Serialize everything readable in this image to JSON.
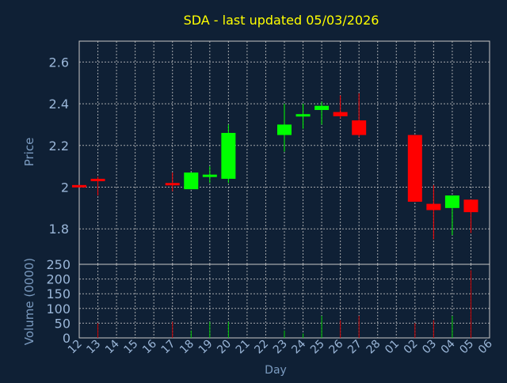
{
  "colors": {
    "background": "#0f2035",
    "plot_border": "#c8c8c8",
    "grid": "#c8c8c8",
    "title": "#ffff00",
    "axis_text": "#9ab6d8",
    "axis_title": "#7b9bc0",
    "up": "#00ff00",
    "down": "#ff0000",
    "volume_up": "#00cc00",
    "volume_down": "#cc0000"
  },
  "chart_data": {
    "type": "candlestick",
    "title": "SDA - last updated 05/03/2026",
    "xlabel": "Day",
    "ylabel_price": "Price",
    "ylabel_volume": "Volume (0000)",
    "price_ylim": [
      1.63,
      2.7
    ],
    "price_ticks": [
      "1.8",
      "2",
      "2.2",
      "2.4",
      "2.6"
    ],
    "volume_ylim": [
      0,
      250
    ],
    "volume_ticks": [
      "0",
      "50",
      "100",
      "150",
      "200",
      "250"
    ],
    "x_ticks": [
      "12",
      "13",
      "14",
      "15",
      "16",
      "17",
      "18",
      "19",
      "20",
      "21",
      "22",
      "23",
      "24",
      "25",
      "26",
      "27",
      "28",
      "01",
      "02",
      "03",
      "04",
      "05",
      "06"
    ],
    "grid": true,
    "candles": [
      {
        "day": "12",
        "open": 2.01,
        "high": 2.01,
        "low": 2.0,
        "close": 2.0,
        "volume": 0
      },
      {
        "day": "13",
        "open": 2.04,
        "high": 2.05,
        "low": 1.96,
        "close": 2.03,
        "volume": 50
      },
      {
        "day": "17",
        "open": 2.02,
        "high": 2.07,
        "low": 1.98,
        "close": 2.01,
        "volume": 55
      },
      {
        "day": "18",
        "open": 1.99,
        "high": 2.07,
        "low": 1.99,
        "close": 2.07,
        "volume": 25
      },
      {
        "day": "19",
        "open": 2.05,
        "high": 2.1,
        "low": 2.02,
        "close": 2.06,
        "volume": 55
      },
      {
        "day": "20",
        "open": 2.04,
        "high": 2.3,
        "low": 2.02,
        "close": 2.26,
        "volume": 55
      },
      {
        "day": "23",
        "open": 2.25,
        "high": 2.4,
        "low": 2.17,
        "close": 2.3,
        "volume": 25
      },
      {
        "day": "24",
        "open": 2.35,
        "high": 2.4,
        "low": 2.28,
        "close": 2.35,
        "volume": 15
      },
      {
        "day": "25",
        "open": 2.37,
        "high": 2.41,
        "low": 2.3,
        "close": 2.39,
        "volume": 75
      },
      {
        "day": "26",
        "open": 2.36,
        "high": 2.44,
        "low": 2.33,
        "close": 2.34,
        "volume": 60
      },
      {
        "day": "27",
        "open": 2.32,
        "high": 2.45,
        "low": 2.24,
        "close": 2.25,
        "volume": 75
      },
      {
        "day": "02",
        "open": 2.25,
        "high": 2.25,
        "low": 1.93,
        "close": 1.93,
        "volume": 50
      },
      {
        "day": "03",
        "open": 1.92,
        "high": 2.01,
        "low": 1.75,
        "close": 1.89,
        "volume": 60
      },
      {
        "day": "04",
        "open": 1.9,
        "high": 1.96,
        "low": 1.77,
        "close": 1.96,
        "volume": 75
      },
      {
        "day": "05",
        "open": 1.94,
        "high": 1.94,
        "low": 1.78,
        "close": 1.88,
        "volume": 230
      }
    ]
  }
}
